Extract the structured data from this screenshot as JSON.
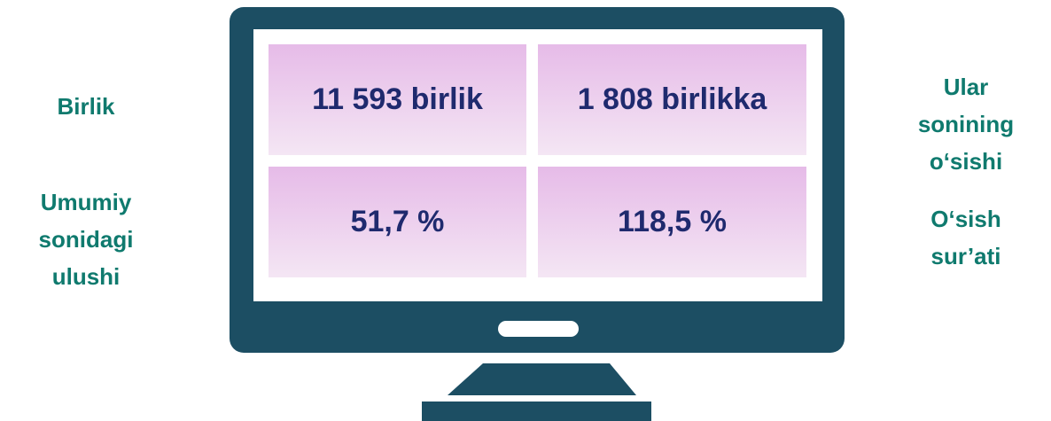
{
  "left_labels": [
    [
      "Birlik"
    ],
    [
      "Umumiy",
      "sonidagi",
      "ulushi"
    ]
  ],
  "right_labels": [
    [
      "Ular",
      "sonining",
      "o‘sishi"
    ],
    [
      "O‘sish",
      "sur’ati"
    ]
  ],
  "cells": [
    [
      "11 593 birlik",
      "1 808 birlikka"
    ],
    [
      "51,7 %",
      "118,5 %"
    ]
  ]
}
